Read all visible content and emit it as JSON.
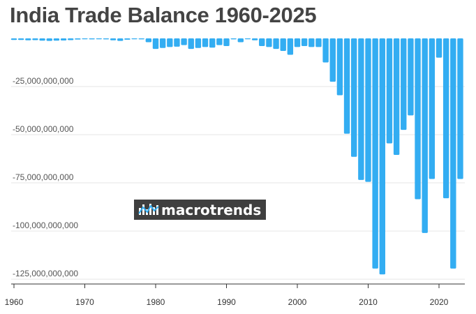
{
  "chart_data": {
    "type": "bar",
    "title": "India Trade Balance 1960-2025",
    "xlabel": "",
    "ylabel": "",
    "x": [
      1960,
      1961,
      1962,
      1963,
      1964,
      1965,
      1966,
      1967,
      1968,
      1969,
      1970,
      1971,
      1972,
      1973,
      1974,
      1975,
      1976,
      1977,
      1978,
      1979,
      1980,
      1981,
      1982,
      1983,
      1984,
      1985,
      1986,
      1987,
      1988,
      1989,
      1990,
      1991,
      1992,
      1993,
      1994,
      1995,
      1996,
      1997,
      1998,
      1999,
      2000,
      2001,
      2002,
      2003,
      2004,
      2005,
      2006,
      2007,
      2008,
      2009,
      2010,
      2011,
      2012,
      2013,
      2014,
      2015,
      2016,
      2017,
      2018,
      2019,
      2020,
      2021,
      2022,
      2023
    ],
    "values": [
      -800000000,
      -800000000,
      -1000000000,
      -900000000,
      -1200000000,
      -1300000000,
      -1200000000,
      -1100000000,
      -900000000,
      -600000000,
      -400000000,
      -500000000,
      -200000000,
      -500000000,
      -1000000000,
      -1300000000,
      -700000000,
      -200000000,
      -500000000,
      -2000000000,
      -5500000000,
      -5000000000,
      -4500000000,
      -4300000000,
      -3500000000,
      -5500000000,
      -5000000000,
      -4500000000,
      -4800000000,
      -3500000000,
      -4000000000,
      -500000000,
      -2000000000,
      -100000000,
      -1000000000,
      -4000000000,
      -4500000000,
      -5500000000,
      -6500000000,
      -8500000000,
      -4500000000,
      -4000000000,
      -4500000000,
      -4500000000,
      -12500000000,
      -22500000000,
      -29500000000,
      -49500000000,
      -61500000000,
      -73500000000,
      -74500000000,
      -119500000000,
      -122500000000,
      -54500000000,
      -60500000000,
      -47500000000,
      -40000000000,
      -83500000000,
      -101000000000,
      -73000000000,
      -10000000000,
      -83000000000,
      -119500000000,
      -73000000000
    ],
    "ylim": [
      -127500000000,
      0
    ],
    "yticks": [
      -25000000000,
      -50000000000,
      -75000000000,
      -100000000000,
      -125000000000
    ],
    "ytick_labels": [
      "-25,000,000,000",
      "-50,000,000,000",
      "-75,000,000,000",
      "-100,000,000,000",
      "-125,000,000,000"
    ],
    "xticks": [
      1960,
      1970,
      1980,
      1990,
      2000,
      2010,
      2020
    ],
    "xtick_labels": [
      "1960",
      "1970",
      "1980",
      "1990",
      "2000",
      "2010",
      "2020"
    ],
    "grid": true,
    "bar_color": "#33adf2",
    "grid_color": "#e6e6e6",
    "axis_color": "#333333"
  },
  "watermark": {
    "text": "macrotrends",
    "icon": "macrotrends-logo-icon",
    "background": "#3f3f3f"
  }
}
